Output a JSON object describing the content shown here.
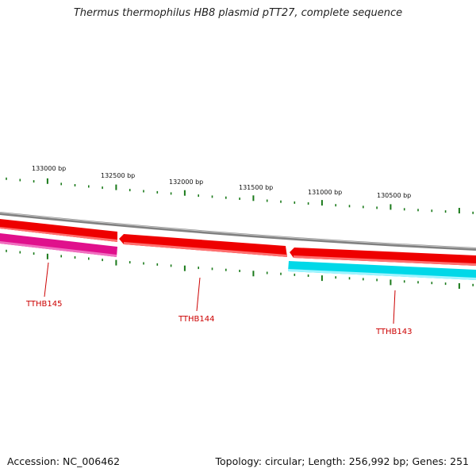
{
  "title": "Thermus thermophilus HB8 plasmid pTT27, complete sequence",
  "accession": "Accession: NC_006462",
  "summary": "Topology: circular; Length: 256,992 bp; Genes: 251",
  "scale_labels": [
    "133000 bp",
    "132500 bp",
    "132000 bp",
    "131500 bp",
    "131000 bp",
    "130500 bp"
  ],
  "genes": [
    {
      "name": "TTHB145",
      "strand": "reverse",
      "color": "#e0108c"
    },
    {
      "name": "TTHB144",
      "strand": "forward",
      "color": "#ee0000"
    },
    {
      "name": "TTHB143",
      "strand": "reverse",
      "color": "#00d8e8"
    }
  ],
  "colors": {
    "backbone": "#808080",
    "forward_strand": "#ee0000",
    "tick_marks": "#1a7a1a",
    "gene_label": "#cc0000"
  }
}
